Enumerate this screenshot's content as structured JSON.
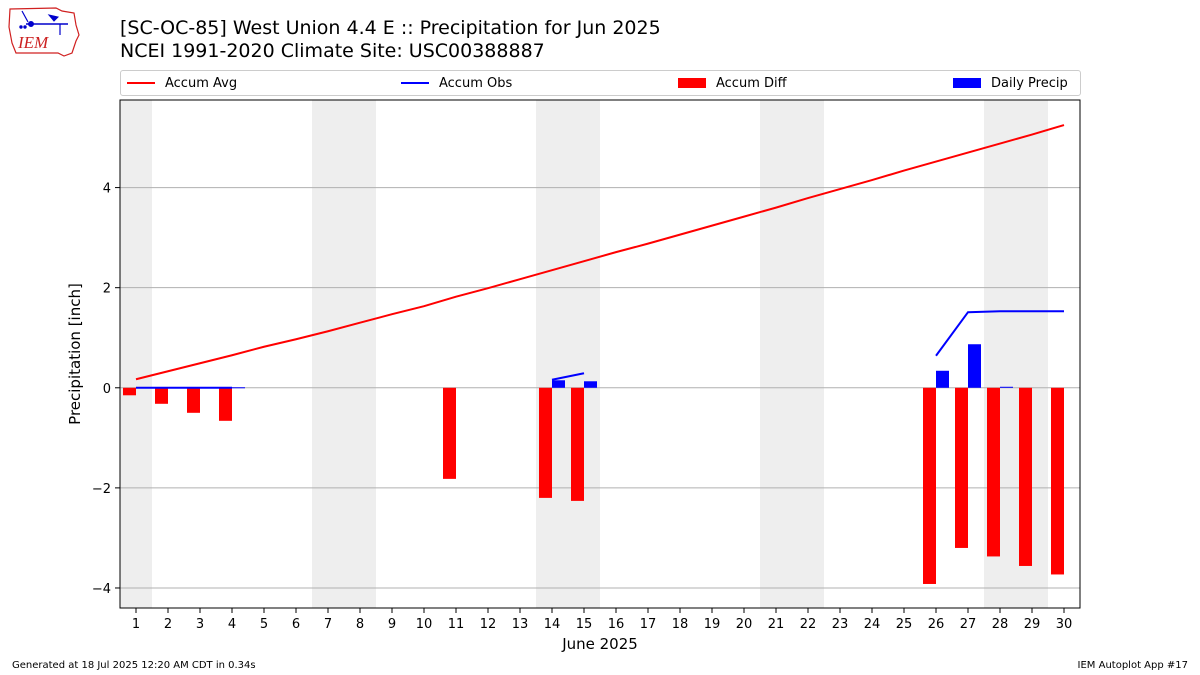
{
  "header": {
    "title_line1": "[SC-OC-85] West Union 4.4 E :: Precipitation for Jun 2025",
    "title_line2": "NCEI 1991-2020 Climate Site: USC00388887",
    "logo_text": "IEM"
  },
  "legend": {
    "items": [
      {
        "label": "Accum Avg",
        "kind": "line",
        "color": "#ff0000"
      },
      {
        "label": "Accum Obs",
        "kind": "line",
        "color": "#0000ff"
      },
      {
        "label": "Accum Diff",
        "kind": "bar",
        "color": "#ff0000"
      },
      {
        "label": "Daily Precip",
        "kind": "bar",
        "color": "#0000ff"
      }
    ]
  },
  "footer": {
    "left": "Generated at 18 Jul 2025 12:20 AM CDT in 0.34s",
    "right": "IEM Autoplot App #17"
  },
  "chart_data": {
    "type": "bar",
    "xlabel": "June 2025",
    "ylabel": "Precipitation [inch]",
    "xlim": [
      0.5,
      30.5
    ],
    "ylim": [
      -4.4,
      5.75
    ],
    "yticks": [
      -4,
      -2,
      0,
      2,
      4
    ],
    "ytick_labels": [
      "−4",
      "−2",
      "0",
      "2",
      "4"
    ],
    "xticks": [
      1,
      2,
      3,
      4,
      5,
      6,
      7,
      8,
      9,
      10,
      11,
      12,
      13,
      14,
      15,
      16,
      17,
      18,
      19,
      20,
      21,
      22,
      23,
      24,
      25,
      26,
      27,
      28,
      29,
      30
    ],
    "grid": "horizontal",
    "legend_placement": "top",
    "weekend_shading": [
      [
        0.5,
        1.5
      ],
      [
        6.5,
        8.5
      ],
      [
        13.5,
        15.5
      ],
      [
        20.5,
        22.5
      ],
      [
        27.5,
        29.5
      ]
    ],
    "shade_color": "#eeeeee",
    "series": [
      {
        "name": "Accum Avg",
        "kind": "line",
        "color": "#ff0000",
        "x": [
          1,
          2,
          3,
          4,
          5,
          6,
          7,
          8,
          9,
          10,
          11,
          12,
          13,
          14,
          15,
          16,
          17,
          18,
          19,
          20,
          21,
          22,
          23,
          24,
          25,
          26,
          27,
          28,
          29,
          30
        ],
        "values": [
          0.17,
          0.33,
          0.49,
          0.65,
          0.82,
          0.97,
          1.13,
          1.3,
          1.47,
          1.63,
          1.82,
          1.99,
          2.17,
          2.35,
          2.53,
          2.71,
          2.88,
          3.06,
          3.24,
          3.42,
          3.6,
          3.79,
          3.97,
          4.15,
          4.34,
          4.52,
          4.7,
          4.88,
          5.06,
          5.25
        ]
      },
      {
        "name": "Accum Obs",
        "kind": "line",
        "color": "#0000ff",
        "segments": [
          {
            "x": [
              1,
              2,
              3,
              4
            ],
            "values": [
              0,
              0,
              0,
              0
            ]
          },
          {
            "x": [
              14,
              15
            ],
            "values": [
              0.16,
              0.29
            ]
          },
          {
            "x": [
              26,
              27,
              28,
              29,
              30
            ],
            "values": [
              0.64,
              1.51,
              1.53,
              1.53,
              1.53
            ]
          }
        ]
      },
      {
        "name": "Accum Diff",
        "kind": "bar",
        "color": "#ff0000",
        "x": [
          1,
          2,
          3,
          4,
          11,
          14,
          15,
          26,
          27,
          28,
          29,
          30
        ],
        "values": [
          -0.15,
          -0.32,
          -0.5,
          -0.66,
          -1.82,
          -2.2,
          -2.26,
          -3.92,
          -3.2,
          -3.37,
          -3.56,
          -3.73
        ]
      },
      {
        "name": "Daily Precip",
        "kind": "bar",
        "color": "#0000ff",
        "x": [
          1,
          2,
          3,
          4,
          14,
          15,
          26,
          27,
          28
        ],
        "values": [
          0.01,
          0.01,
          0.01,
          0.01,
          0.15,
          0.13,
          0.34,
          0.87,
          0.02
        ]
      }
    ]
  }
}
